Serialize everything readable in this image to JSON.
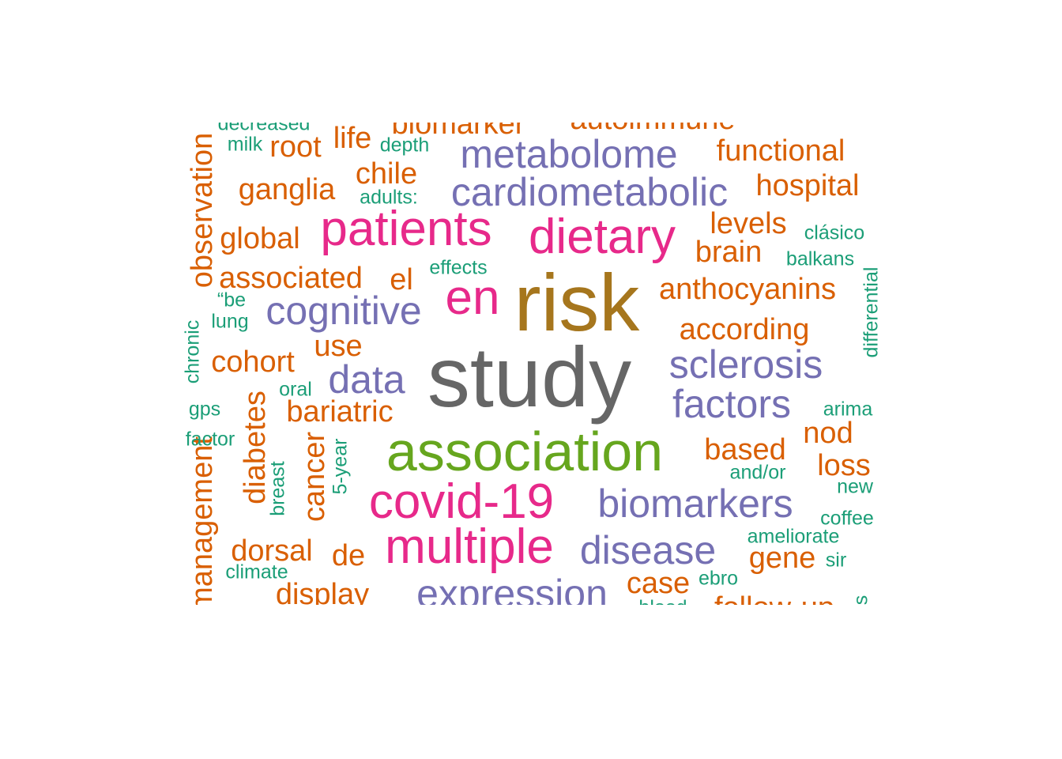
{
  "palette": {
    "gray": "#666666",
    "olive": "#a6761d",
    "green": "#66a61e",
    "pink": "#e7298a",
    "purple": "#7570b3",
    "orange": "#d95f02",
    "teal": "#1b9e77"
  },
  "words": [
    {
      "id": "study",
      "text": "study",
      "color": "gray"
    },
    {
      "id": "risk",
      "text": "risk",
      "color": "olive"
    },
    {
      "id": "association",
      "text": "association",
      "color": "green"
    },
    {
      "id": "patients",
      "text": "patients",
      "color": "pink"
    },
    {
      "id": "dietary",
      "text": "dietary",
      "color": "pink"
    },
    {
      "id": "en",
      "text": "en",
      "color": "pink"
    },
    {
      "id": "covid-19",
      "text": "covid-19",
      "color": "pink"
    },
    {
      "id": "multiple",
      "text": "multiple",
      "color": "pink"
    },
    {
      "id": "metabolome",
      "text": "metabolome",
      "color": "purple"
    },
    {
      "id": "cardiometabolic",
      "text": "cardiometabolic",
      "color": "purple"
    },
    {
      "id": "cognitive",
      "text": "cognitive",
      "color": "purple"
    },
    {
      "id": "data",
      "text": "data",
      "color": "purple"
    },
    {
      "id": "sclerosis",
      "text": "sclerosis",
      "color": "purple"
    },
    {
      "id": "factors",
      "text": "factors",
      "color": "purple"
    },
    {
      "id": "biomarkers",
      "text": "biomarkers",
      "color": "purple"
    },
    {
      "id": "disease",
      "text": "disease",
      "color": "purple"
    },
    {
      "id": "expression",
      "text": "expression",
      "color": "purple"
    },
    {
      "id": "biomarker",
      "text": "biomarker",
      "color": "orange"
    },
    {
      "id": "autoimmune",
      "text": "autoimmune",
      "color": "orange"
    },
    {
      "id": "root",
      "text": "root",
      "color": "orange"
    },
    {
      "id": "life",
      "text": "life",
      "color": "orange"
    },
    {
      "id": "functional",
      "text": "functional",
      "color": "orange"
    },
    {
      "id": "chile",
      "text": "chile",
      "color": "orange"
    },
    {
      "id": "ganglia",
      "text": "ganglia",
      "color": "orange"
    },
    {
      "id": "hospital",
      "text": "hospital",
      "color": "orange"
    },
    {
      "id": "levels",
      "text": "levels",
      "color": "orange"
    },
    {
      "id": "global",
      "text": "global",
      "color": "orange"
    },
    {
      "id": "brain",
      "text": "brain",
      "color": "orange"
    },
    {
      "id": "associated",
      "text": "associated",
      "color": "orange"
    },
    {
      "id": "el",
      "text": "el",
      "color": "orange"
    },
    {
      "id": "anthocyanins",
      "text": "anthocyanins",
      "color": "orange"
    },
    {
      "id": "according",
      "text": "according",
      "color": "orange"
    },
    {
      "id": "use",
      "text": "use",
      "color": "orange"
    },
    {
      "id": "cohort",
      "text": "cohort",
      "color": "orange"
    },
    {
      "id": "bariatric",
      "text": "bariatric",
      "color": "orange"
    },
    {
      "id": "nod",
      "text": "nod",
      "color": "orange"
    },
    {
      "id": "based",
      "text": "based",
      "color": "orange"
    },
    {
      "id": "loss",
      "text": "loss",
      "color": "orange"
    },
    {
      "id": "dorsal",
      "text": "dorsal",
      "color": "orange"
    },
    {
      "id": "de",
      "text": "de",
      "color": "orange"
    },
    {
      "id": "gene",
      "text": "gene",
      "color": "orange"
    },
    {
      "id": "case",
      "text": "case",
      "color": "orange"
    },
    {
      "id": "display",
      "text": "display",
      "color": "orange"
    },
    {
      "id": "follow-up",
      "text": "follow-up",
      "color": "orange"
    },
    {
      "id": "observation",
      "text": "observation",
      "color": "orange"
    },
    {
      "id": "management",
      "text": "management",
      "color": "orange"
    },
    {
      "id": "diabetes",
      "text": "diabetes",
      "color": "orange"
    },
    {
      "id": "cancer",
      "text": "cancer",
      "color": "orange"
    },
    {
      "id": "decreased",
      "text": "decreased",
      "color": "teal"
    },
    {
      "id": "milk",
      "text": "milk",
      "color": "teal"
    },
    {
      "id": "depth",
      "text": "depth",
      "color": "teal"
    },
    {
      "id": "adults",
      "text": "adults:",
      "color": "teal"
    },
    {
      "id": "clasico",
      "text": "clásico",
      "color": "teal"
    },
    {
      "id": "balkans",
      "text": "balkans",
      "color": "teal"
    },
    {
      "id": "effects",
      "text": "effects",
      "color": "teal"
    },
    {
      "id": "be",
      "text": "“be",
      "color": "teal"
    },
    {
      "id": "lung",
      "text": "lung",
      "color": "teal"
    },
    {
      "id": "oral",
      "text": "oral",
      "color": "teal"
    },
    {
      "id": "gps",
      "text": "gps",
      "color": "teal"
    },
    {
      "id": "factor",
      "text": "factor",
      "color": "teal"
    },
    {
      "id": "arima",
      "text": "arima",
      "color": "teal"
    },
    {
      "id": "and-or",
      "text": "and/or",
      "color": "teal"
    },
    {
      "id": "new",
      "text": "new",
      "color": "teal"
    },
    {
      "id": "coffee",
      "text": "coffee",
      "color": "teal"
    },
    {
      "id": "ameliorate",
      "text": "ameliorate",
      "color": "teal"
    },
    {
      "id": "sir",
      "text": "sir",
      "color": "teal"
    },
    {
      "id": "climate",
      "text": "climate",
      "color": "teal"
    },
    {
      "id": "ebro",
      "text": "ebro",
      "color": "teal"
    },
    {
      "id": "blood",
      "text": "blood",
      "color": "teal"
    },
    {
      "id": "chronic",
      "text": "chronic",
      "color": "teal"
    },
    {
      "id": "breast",
      "text": "breast",
      "color": "teal"
    },
    {
      "id": "5-year",
      "text": "5-year",
      "color": "teal"
    },
    {
      "id": "differential",
      "text": "differential",
      "color": "teal"
    },
    {
      "id": "s-fragment",
      "text": "s",
      "color": "teal"
    },
    {
      "id": "top-fragment",
      "text": "' '",
      "color": "teal"
    }
  ]
}
